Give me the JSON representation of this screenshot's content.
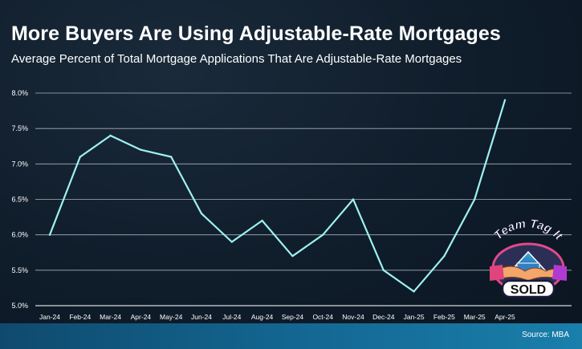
{
  "header": {
    "title": "More Buyers Are Using Adjustable-Rate Mortgages",
    "subtitle": "Average Percent of Total Mortgage Applications That Are Adjustable-Rate Mortgages"
  },
  "footer": {
    "source": "Source: MBA"
  },
  "logo": {
    "text_top": "Team Tag It",
    "text_bottom": "SOLD"
  },
  "colors": {
    "line": "#9ff0f0",
    "grid": "#e8eef2",
    "background": "#0f1c2a",
    "footer_band": "#136691"
  },
  "chart_data": {
    "type": "line",
    "categories": [
      "Jan-24",
      "Feb-24",
      "Mar-24",
      "Apr-24",
      "May-24",
      "Jun-24",
      "Jul-24",
      "Aug-24",
      "Sep-24",
      "Oct-24",
      "Nov-24",
      "Dec-24",
      "Jan-25",
      "Feb-25",
      "Mar-25",
      "Apr-25"
    ],
    "series": [
      {
        "values": [
          6.0,
          7.1,
          7.4,
          7.2,
          7.1,
          6.3,
          5.9,
          6.2,
          5.7,
          6.0,
          6.5,
          5.5,
          5.2,
          5.7,
          6.5,
          7.9
        ]
      }
    ],
    "yticks": [
      "5.0%",
      "5.5%",
      "6.0%",
      "6.5%",
      "7.0%",
      "7.5%",
      "8.0%"
    ],
    "ylim": [
      5.0,
      8.0
    ],
    "xlabel": "",
    "ylabel": "",
    "grid": true,
    "legend": "none"
  }
}
